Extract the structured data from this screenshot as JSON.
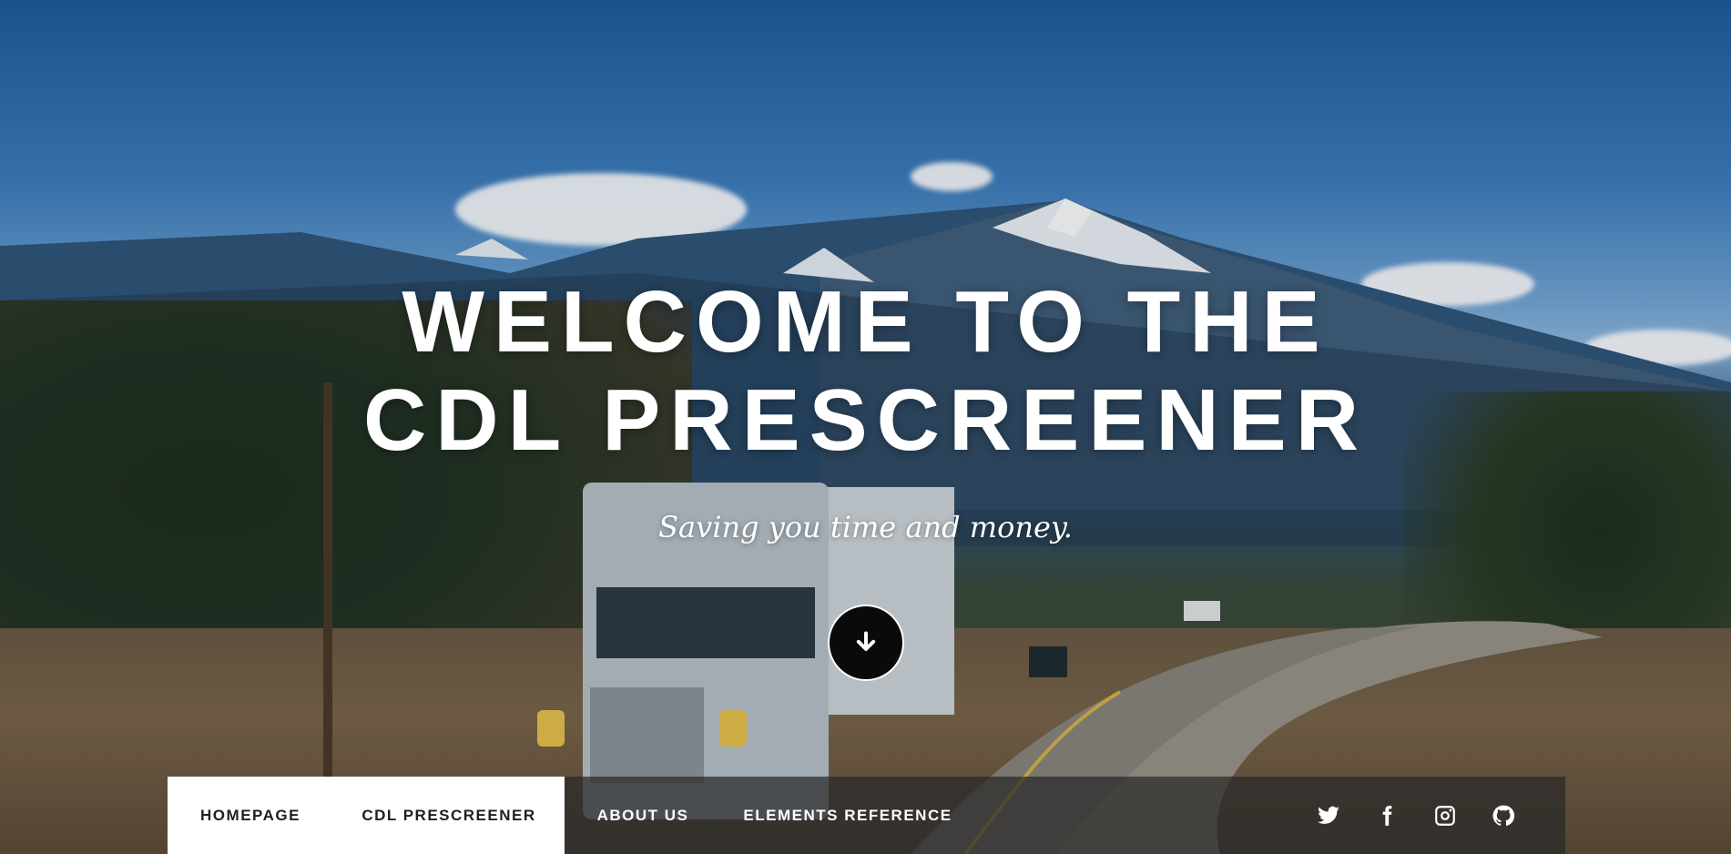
{
  "hero": {
    "title_line1": "WELCOME TO THE",
    "title_line2": "CDL PRESCREENER",
    "tagline": "Saving you time and money.",
    "scroll_icon": "arrow-down-icon"
  },
  "nav": {
    "items": [
      {
        "label": "HOMEPAGE"
      },
      {
        "label": "CDL PRESCREENER"
      },
      {
        "label": "ABOUT US"
      },
      {
        "label": "ELEMENTS REFERENCE"
      }
    ],
    "social_icons": [
      "twitter-icon",
      "facebook-icon",
      "instagram-icon",
      "github-icon"
    ]
  },
  "colors": {
    "nav_background": "#282828",
    "active_nav_background": "#ffffff",
    "text": "#ffffff"
  }
}
